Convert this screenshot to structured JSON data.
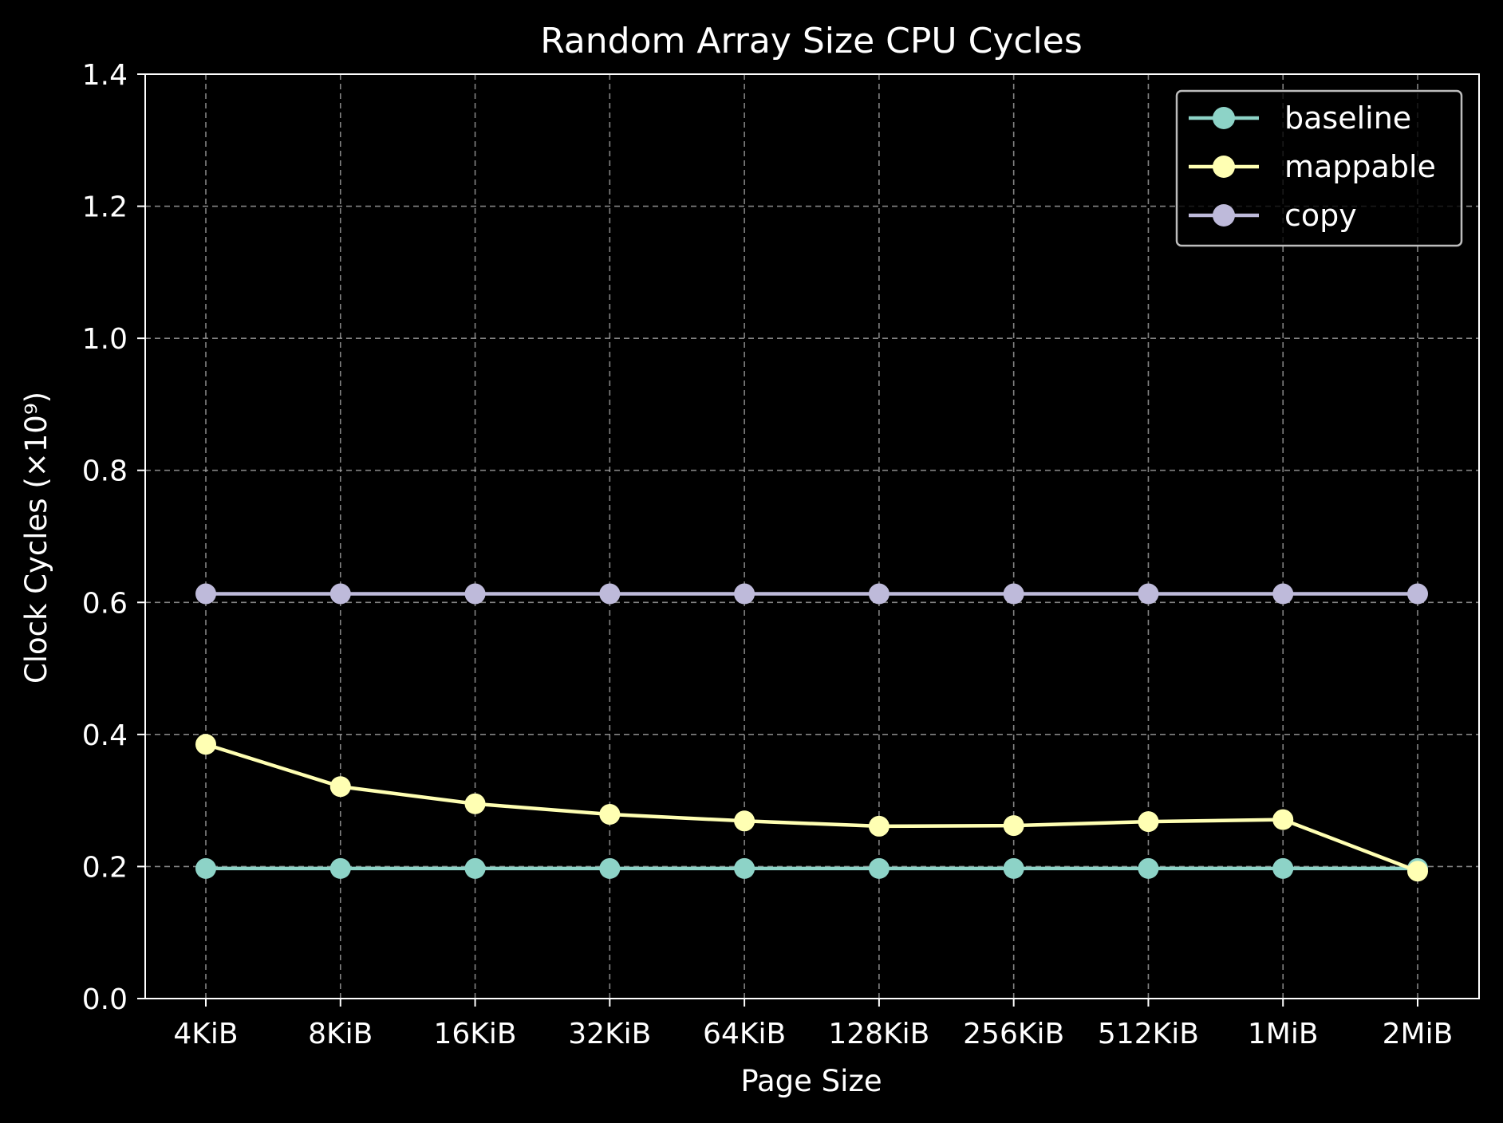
{
  "chart_data": {
    "type": "line",
    "title": "Random Array Size CPU Cycles",
    "xlabel": "Page Size",
    "ylabel": "Clock Cycles (×10⁹)",
    "categories": [
      "4KiB",
      "8KiB",
      "16KiB",
      "32KiB",
      "64KiB",
      "128KiB",
      "256KiB",
      "512KiB",
      "1MiB",
      "2MiB"
    ],
    "ylim": [
      0.0,
      1.4
    ],
    "yticks": [
      "0.0",
      "0.2",
      "0.4",
      "0.6",
      "0.8",
      "1.0",
      "1.2",
      "1.4"
    ],
    "grid": true,
    "legend_position": "top-right",
    "series": [
      {
        "name": "baseline",
        "color": "#8dd3c7",
        "values": [
          0.197,
          0.197,
          0.197,
          0.197,
          0.197,
          0.197,
          0.197,
          0.197,
          0.197,
          0.197
        ]
      },
      {
        "name": "mappable",
        "color": "#ffffb3",
        "values": [
          0.385,
          0.321,
          0.295,
          0.279,
          0.269,
          0.261,
          0.262,
          0.268,
          0.271,
          0.193
        ]
      },
      {
        "name": "copy",
        "color": "#bebada",
        "values": [
          0.613,
          0.613,
          0.613,
          0.613,
          0.613,
          0.613,
          0.613,
          0.613,
          0.613,
          0.613
        ]
      }
    ]
  }
}
